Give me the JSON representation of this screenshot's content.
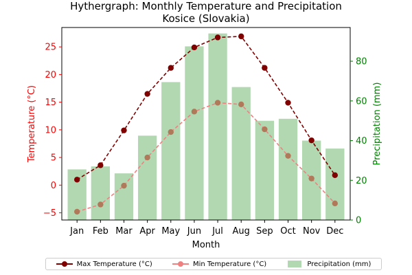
{
  "chart_data": {
    "type": "bar+line",
    "title": "Hythergraph: Monthly Temperature and Precipitation",
    "subtitle": "Kosice (Slovakia)",
    "xlabel": "Month",
    "ylabel_left": "Temperature (°C)",
    "ylabel_right": "Precipitation (mm)",
    "categories": [
      "Jan",
      "Feb",
      "Mar",
      "Apr",
      "May",
      "Jun",
      "Jul",
      "Aug",
      "Sep",
      "Oct",
      "Nov",
      "Dec"
    ],
    "ylim_left": [
      -6.3,
      28.5
    ],
    "ylim_right": [
      0,
      97
    ],
    "yticks_left": [
      -5,
      0,
      5,
      10,
      15,
      20,
      25
    ],
    "yticks_right": [
      0,
      20,
      40,
      60,
      80
    ],
    "series": [
      {
        "name": "Max Temperature (°C)",
        "axis": "left",
        "kind": "line",
        "values": [
          1.0,
          3.6,
          9.9,
          16.5,
          21.2,
          24.9,
          26.7,
          26.9,
          21.2,
          14.9,
          8.1,
          1.8
        ]
      },
      {
        "name": "Min Temperature (°C)",
        "axis": "left",
        "kind": "line",
        "values": [
          -4.8,
          -3.5,
          -0.1,
          5.0,
          9.6,
          13.3,
          14.9,
          14.6,
          10.1,
          5.3,
          1.2,
          -3.3
        ]
      },
      {
        "name": "Precipitation (mm)",
        "axis": "right",
        "kind": "bar",
        "values": [
          25.5,
          27,
          23.5,
          42.5,
          69.5,
          87.5,
          94,
          67,
          50,
          51,
          40,
          36
        ]
      }
    ],
    "legend_position": "bottom",
    "grid": false
  },
  "colors": {
    "max_temp": "#800000",
    "min_temp": "#f08080",
    "min_temp_marker": "#b07a5a",
    "precip": "#b2d8b2",
    "left_axis": "#ff0000",
    "right_axis": "#008000"
  }
}
